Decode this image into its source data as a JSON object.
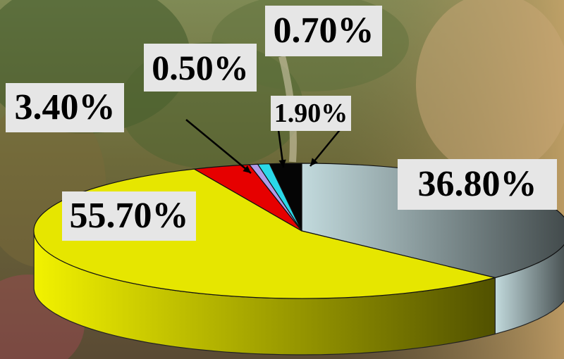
{
  "chart_data": {
    "type": "pie",
    "style": "3d-tilted",
    "background": "forest photograph",
    "label_box_color": "#e6e6e6",
    "slices": [
      {
        "value": 36.8,
        "label": "36.80%",
        "color": "#b9d0d2"
      },
      {
        "value": 55.7,
        "label": "55.70%",
        "color": "#e6e600"
      },
      {
        "value": 3.4,
        "label": "3.40%",
        "color": "#e60000"
      },
      {
        "value": 0.5,
        "label": "0.50%",
        "color": "#b09be8"
      },
      {
        "value": 0.7,
        "label": "0.70%",
        "color": "#2ad8e8"
      },
      {
        "value": 1.9,
        "label": "1.90%",
        "color": "#050505"
      }
    ]
  }
}
